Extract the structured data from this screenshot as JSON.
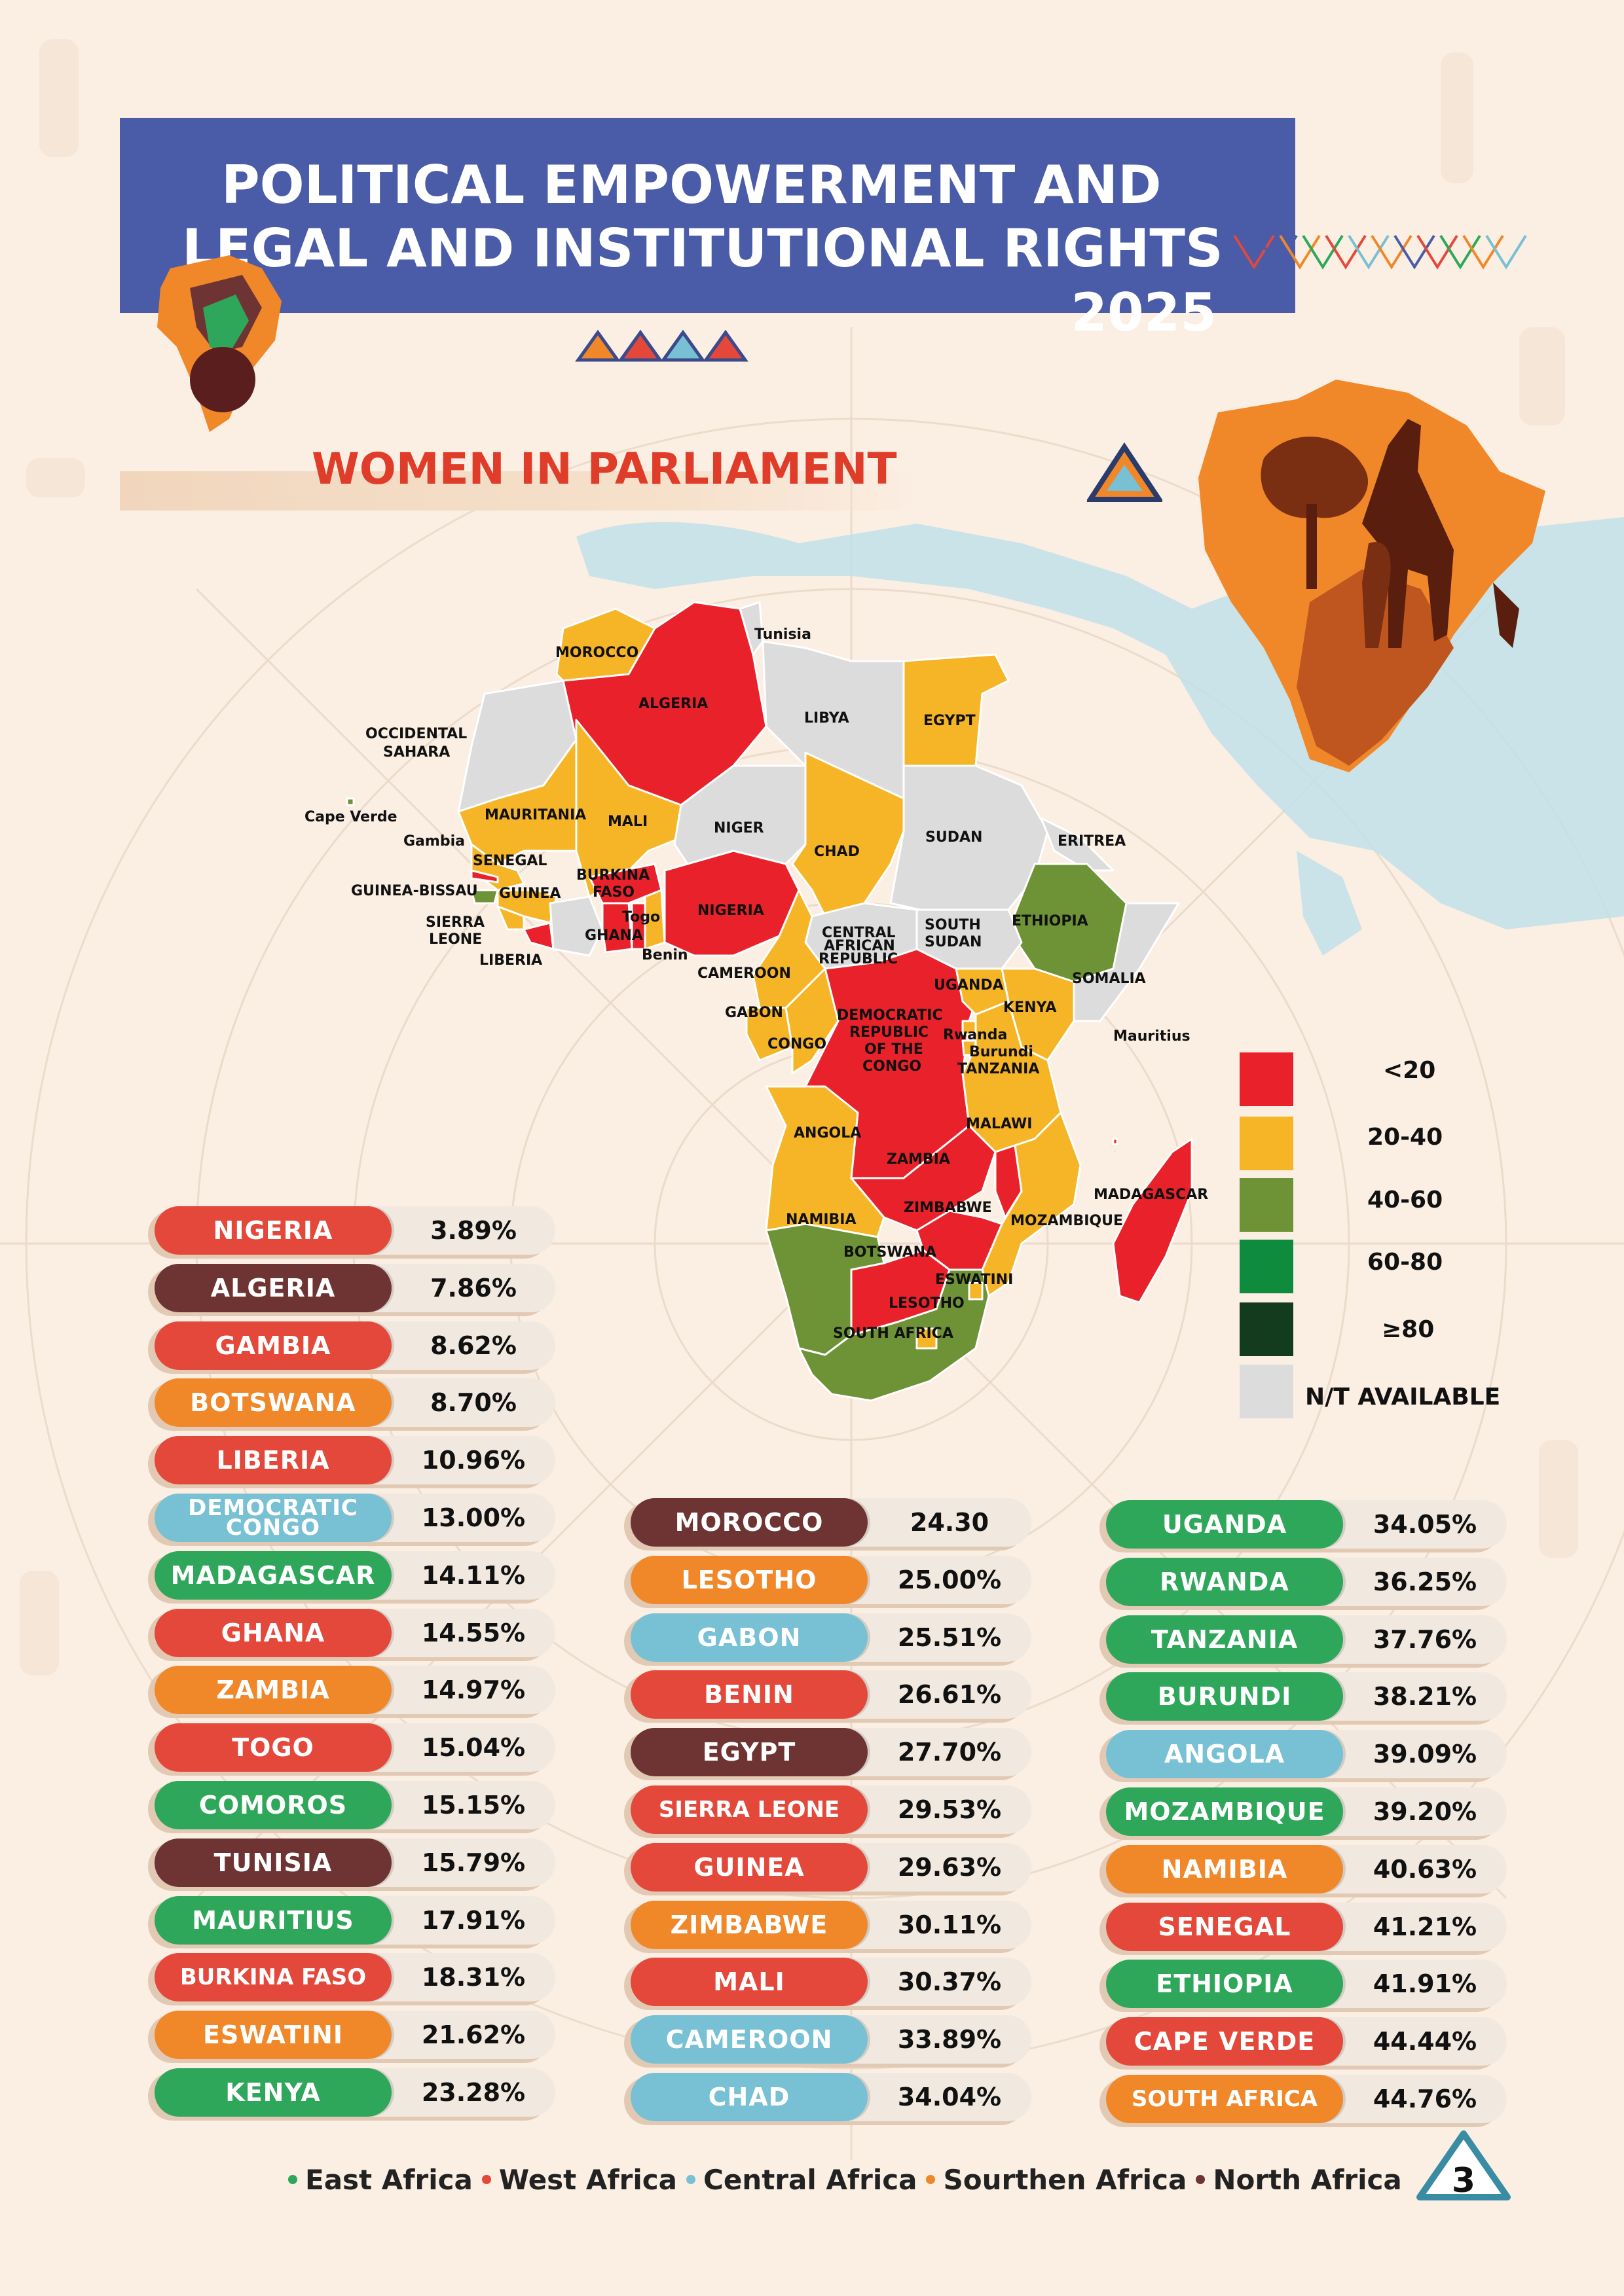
{
  "header": {
    "title_line1": "POLITICAL EMPOWERMENT AND",
    "title_line2": "LEGAL AND INSTITUTIONAL RIGHTS",
    "year": "2025"
  },
  "section_title": "WOMEN IN PARLIAMENT",
  "colors": {
    "header_bg": "#4a5ba8",
    "title_red": "#e03c2a",
    "bin_lt20": "#e9212a",
    "bin_20_40": "#f6b526",
    "bin_40_60": "#6e9236",
    "bin_60_80": "#0e8b3c",
    "bin_ge80": "#133b1e",
    "bin_na": "#dcdcdc",
    "east_africa": "#2ea75a",
    "west_africa": "#e4483a",
    "central_africa": "#78c0d3",
    "southern_africa": "#f0882a",
    "north_africa": "#6e3434"
  },
  "map": {
    "labels": {
      "morocco": "MOROCCO",
      "tunisia": "Tunisia",
      "algeria": "ALGERIA",
      "libya": "LIBYA",
      "egypt": "EGYPT",
      "occidental_sahara": "OCCIDENTAL\nSAHARA",
      "cape_verde": "Cape Verde",
      "mauritania": "MAURITANIA",
      "mali": "MALI",
      "niger": "NIGER",
      "chad": "CHAD",
      "sudan": "SUDAN",
      "eritrea": "ERITREA",
      "gambia": "Gambia",
      "senegal": "SENEGAL",
      "guinea_bissau": "GUINEA-BISSAU",
      "guinea": "GUINEA",
      "burkina_faso": "BURKINA\nFASO",
      "nigeria": "NIGERIA",
      "sierra_leone": "SIERRA\nLEONE",
      "togo": "Togo",
      "ghana": "GHANA",
      "liberia": "LIBERIA",
      "benin": "Benin",
      "central_african_republic": "CENTRAL\nAFRICAN\nREPUBLIC",
      "south_sudan": "SOUTH\nSUDAN",
      "ethiopia": "ETHIOPIA",
      "cameroon": "CAMEROON",
      "somalia": "SOMALIA",
      "uganda": "UGANDA",
      "kenya": "KENYA",
      "gabon": "GABON",
      "drc": "DEMOCRATIC\nREPUBLIC\nOF THE\nCONGO",
      "rwanda": "Rwanda",
      "burundi": "Burundi",
      "tanzania": "TANZANIA",
      "mauritius": "Mauritius",
      "congo": "CONGO",
      "angola": "ANGOLA",
      "malawi": "MALAWI",
      "zambia": "ZAMBIA",
      "madagascar": "MADAGASCAR",
      "namibia": "NAMIBIA",
      "zimbabwe": "ZIMBABWE",
      "mozambique": "MOZAMBIQUE",
      "botswana": "BOTSWANA",
      "eswatini": "ESWATINI",
      "lesotho": "LESOTHO",
      "south_africa": "SOUTH AFRICA"
    }
  },
  "legend": [
    {
      "label": "<20",
      "color": "#e9212a"
    },
    {
      "label": "20-40",
      "color": "#f6b526"
    },
    {
      "label": "40-60",
      "color": "#6e9236"
    },
    {
      "label": "60-80",
      "color": "#0e8b3c"
    },
    {
      "label": "≥80",
      "color": "#133b1e"
    },
    {
      "label": "N/T AVAILABLE",
      "color": "#dcdcdc"
    }
  ],
  "rankings": {
    "col1": [
      {
        "country": "NIGERIA",
        "value": "3.89%",
        "region": "west"
      },
      {
        "country": "ALGERIA",
        "value": "7.86%",
        "region": "north"
      },
      {
        "country": "GAMBIA",
        "value": "8.62%",
        "region": "west"
      },
      {
        "country": "BOTSWANA",
        "value": "8.70%",
        "region": "southern"
      },
      {
        "country": "LIBERIA",
        "value": "10.96%",
        "region": "west"
      },
      {
        "country": "DEMOCRATIC\nCONGO",
        "value": "13.00%",
        "region": "central"
      },
      {
        "country": "MADAGASCAR",
        "value": "14.11%",
        "region": "east"
      },
      {
        "country": "GHANA",
        "value": "14.55%",
        "region": "west"
      },
      {
        "country": "ZAMBIA",
        "value": "14.97%",
        "region": "southern"
      },
      {
        "country": "TOGO",
        "value": "15.04%",
        "region": "west"
      },
      {
        "country": "COMOROS",
        "value": "15.15%",
        "region": "east"
      },
      {
        "country": "TUNISIA",
        "value": "15.79%",
        "region": "north"
      },
      {
        "country": "MAURITIUS",
        "value": "17.91%",
        "region": "east"
      },
      {
        "country": "BURKINA FASO",
        "value": "18.31%",
        "region": "west"
      },
      {
        "country": "ESWATINI",
        "value": "21.62%",
        "region": "southern"
      },
      {
        "country": "KENYA",
        "value": "23.28%",
        "region": "east"
      }
    ],
    "col2": [
      {
        "country": "MOROCCO",
        "value": "24.30",
        "region": "north"
      },
      {
        "country": "LESOTHO",
        "value": "25.00%",
        "region": "southern"
      },
      {
        "country": "GABON",
        "value": "25.51%",
        "region": "central"
      },
      {
        "country": "BENIN",
        "value": "26.61%",
        "region": "west"
      },
      {
        "country": "EGYPT",
        "value": "27.70%",
        "region": "north"
      },
      {
        "country": "SIERRA LEONE",
        "value": "29.53%",
        "region": "west"
      },
      {
        "country": "GUINEA",
        "value": "29.63%",
        "region": "west"
      },
      {
        "country": "ZIMBABWE",
        "value": "30.11%",
        "region": "southern"
      },
      {
        "country": "MALI",
        "value": "30.37%",
        "region": "west"
      },
      {
        "country": "CAMEROON",
        "value": "33.89%",
        "region": "central"
      },
      {
        "country": "CHAD",
        "value": "34.04%",
        "region": "central"
      }
    ],
    "col3": [
      {
        "country": "UGANDA",
        "value": "34.05%",
        "region": "east"
      },
      {
        "country": "RWANDA",
        "value": "36.25%",
        "region": "east"
      },
      {
        "country": "TANZANIA",
        "value": "37.76%",
        "region": "east"
      },
      {
        "country": "BURUNDI",
        "value": "38.21%",
        "region": "east"
      },
      {
        "country": "ANGOLA",
        "value": "39.09%",
        "region": "central"
      },
      {
        "country": "MOZAMBIQUE",
        "value": "39.20%",
        "region": "east"
      },
      {
        "country": "NAMIBIA",
        "value": "40.63%",
        "region": "southern"
      },
      {
        "country": "SENEGAL",
        "value": "41.21%",
        "region": "west"
      },
      {
        "country": "ETHIOPIA",
        "value": "41.91%",
        "region": "east"
      },
      {
        "country": "CAPE VERDE",
        "value": "44.44%",
        "region": "west"
      },
      {
        "country": "SOUTH AFRICA",
        "value": "44.76%",
        "region": "southern"
      }
    ]
  },
  "region_legend": [
    {
      "label": "East Africa",
      "color": "#2ea75a"
    },
    {
      "label": "West Africa",
      "color": "#e4483a"
    },
    {
      "label": "Central Africa",
      "color": "#78c0d3"
    },
    {
      "label": "Sourthen Africa",
      "color": "#f0882a"
    },
    {
      "label": "North Africa",
      "color": "#6e3434"
    }
  ],
  "page_number": "3"
}
